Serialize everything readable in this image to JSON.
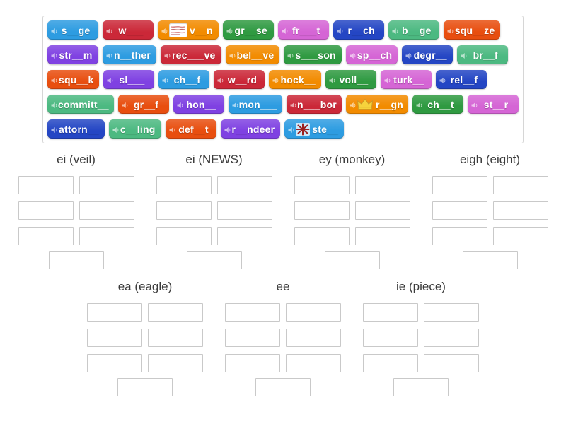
{
  "palette": {
    "tile_colors": [
      "#2d9ce1",
      "#cb2838",
      "#f28b00",
      "#2f9a41",
      "#d565d5",
      "#2446c4",
      "#4cb981",
      "#e84e0f",
      "#7f41e2"
    ],
    "tile_text": "#ffffff",
    "slot_border": "#c9c9c9",
    "bank_border": "#d6d6d6",
    "header_text": "#3b3b3b"
  },
  "word_bank": {
    "rows": [
      [
        {
          "label": "s__ge",
          "color": 0
        },
        {
          "label": "w___",
          "color": 1
        },
        {
          "label": "v__n",
          "color": 2,
          "image": "vein-image"
        },
        {
          "label": "gr__se",
          "color": 3
        },
        {
          "label": "fr___t",
          "color": 4
        },
        {
          "label": "r__ch",
          "color": 5
        },
        {
          "label": "b__ge",
          "color": 6
        },
        {
          "label": "squ__ze",
          "color": 7
        }
      ],
      [
        {
          "label": "str__m",
          "color": 8
        },
        {
          "label": "n__ther",
          "color": 0
        },
        {
          "label": "rec___ve",
          "color": 1
        },
        {
          "label": "bel__ve",
          "color": 2
        },
        {
          "label": "s___son",
          "color": 3
        },
        {
          "label": "sp__ch",
          "color": 4
        },
        {
          "label": "degr__",
          "color": 5
        },
        {
          "label": "br__f",
          "color": 6
        }
      ],
      [
        {
          "label": "squ__k",
          "color": 7
        },
        {
          "label": "sl___",
          "color": 8
        },
        {
          "label": "ch__f",
          "color": 0
        },
        {
          "label": "w__rd",
          "color": 1
        },
        {
          "label": "hock__",
          "color": 2
        },
        {
          "label": "voll__",
          "color": 3
        },
        {
          "label": "turk__",
          "color": 4
        },
        {
          "label": "rel__f",
          "color": 5
        }
      ],
      [
        {
          "label": "committ__",
          "color": 6
        },
        {
          "label": "gr__f",
          "color": 7
        },
        {
          "label": "hon__",
          "color": 8
        },
        {
          "label": "mon___",
          "color": 0
        },
        {
          "label": "n___bor",
          "color": 1
        },
        {
          "label": "r__gn",
          "color": 2,
          "image": "crown-image"
        },
        {
          "label": "ch__t",
          "color": 3
        },
        {
          "label": "st__r",
          "color": 4
        }
      ],
      [
        {
          "label": "attorn__",
          "color": 5
        },
        {
          "label": "c__ling",
          "color": 6
        },
        {
          "label": "def__t",
          "color": 7
        },
        {
          "label": "r__ndeer",
          "color": 8
        },
        {
          "label": "ste__",
          "color": 0,
          "image": "star-image"
        }
      ]
    ]
  },
  "groups": {
    "top": [
      {
        "title": "ei (veil)",
        "slots": 7
      },
      {
        "title": "ei (NEWS)",
        "slots": 7
      },
      {
        "title": "ey (monkey)",
        "slots": 7
      },
      {
        "title": "eigh (eight)",
        "slots": 7
      }
    ],
    "bottom": [
      {
        "title": "ea (eagle)",
        "slots": 7
      },
      {
        "title": "ee",
        "slots": 7
      },
      {
        "title": "ie (piece)",
        "slots": 7
      }
    ]
  }
}
